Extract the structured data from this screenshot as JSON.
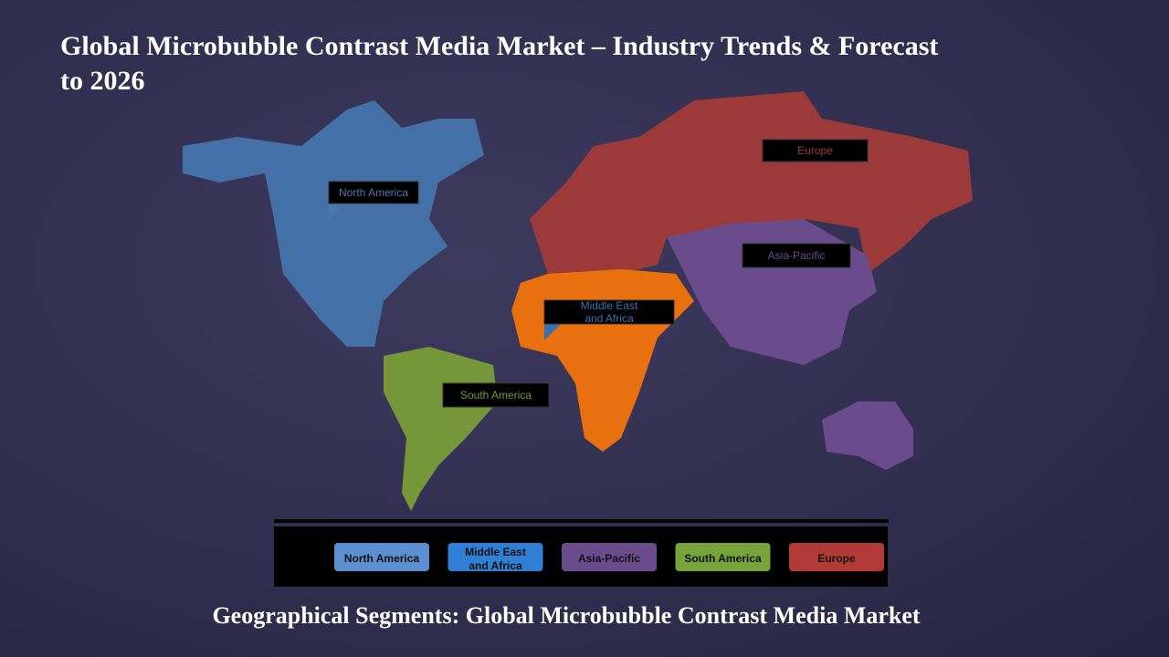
{
  "title": "Global Microbubble Contrast Media Market – Industry Trends & Forecast to 2026",
  "map_labels": [
    {
      "label": "North America",
      "color": "#4a76ad"
    },
    {
      "label": "Europe",
      "color": "#9c3a3a"
    },
    {
      "label": "Asia-Pacific",
      "color": "#6a4c8c"
    },
    {
      "label": "Middle East and Africa",
      "color": "#3a6fb0"
    },
    {
      "label": "South America",
      "color": "#76963a"
    }
  ],
  "legend": [
    {
      "label": "North America",
      "color": "#5b8fcf"
    },
    {
      "label": "Middle East and Africa",
      "color": "#2f7fd6"
    },
    {
      "label": "Asia-Pacific",
      "color": "#6a4c8c"
    },
    {
      "label": "South America",
      "color": "#76a33a"
    },
    {
      "label": "Europe",
      "color": "#b13a36"
    }
  ],
  "caption": "Geographical Segments: Global Microbubble Contrast Media Market"
}
